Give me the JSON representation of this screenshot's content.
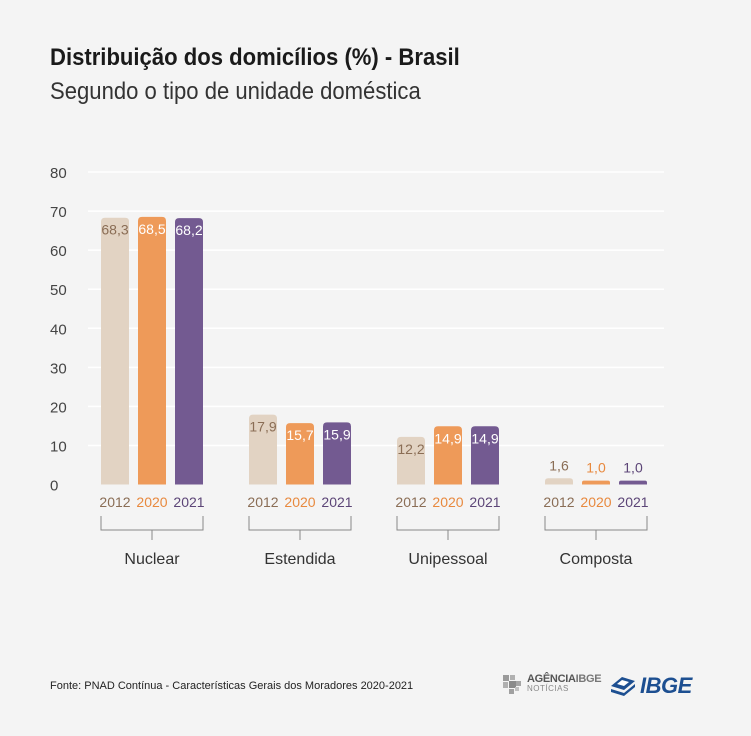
{
  "header": {
    "title": "Distribuição dos domicílios (%) - Brasil",
    "subtitle": "Segundo o tipo de unidade doméstica"
  },
  "chart_data": {
    "type": "bar",
    "title": "Distribuição dos domicílios (%) - Brasil",
    "subtitle": "Segundo o tipo de unidade doméstica",
    "xlabel": "",
    "ylabel": "",
    "ylim": [
      0,
      80
    ],
    "yticks": [
      "0",
      "10",
      "20",
      "30",
      "40",
      "50",
      "60",
      "70",
      "80"
    ],
    "grid": true,
    "categories": [
      "Nuclear",
      "Estendida",
      "Unipessoal",
      "Composta"
    ],
    "series": [
      {
        "name": "2012",
        "color": "#e2d3c3",
        "label_color": "#8a6d55",
        "values": [
          68.3,
          17.9,
          12.2,
          1.6
        ],
        "labels": [
          "68,3",
          "17,9",
          "12,2",
          "1,6"
        ]
      },
      {
        "name": "2020",
        "color": "#ee9a59",
        "label_color": "#e8893e",
        "values": [
          68.5,
          15.7,
          14.9,
          1.0
        ],
        "labels": [
          "68,5",
          "15,7",
          "14,9",
          "1,0"
        ]
      },
      {
        "name": "2021",
        "color": "#735a91",
        "label_color": "#5c4577",
        "values": [
          68.2,
          15.9,
          14.9,
          1.0
        ],
        "labels": [
          "68,2",
          "15,9",
          "14,9",
          "1,0"
        ]
      }
    ]
  },
  "footer": {
    "source": "Fonte: PNAD Contínua - Características Gerais dos Moradores 2020-2021",
    "agencia_top_a": "AGÊNCIA",
    "agencia_top_b": "IBGE",
    "agencia_sub": "NOTÍCIAS",
    "ibge_brand": "IBGE",
    "logo_icon": "ibge-logo-icon",
    "brand_color": "#1d4f91"
  }
}
